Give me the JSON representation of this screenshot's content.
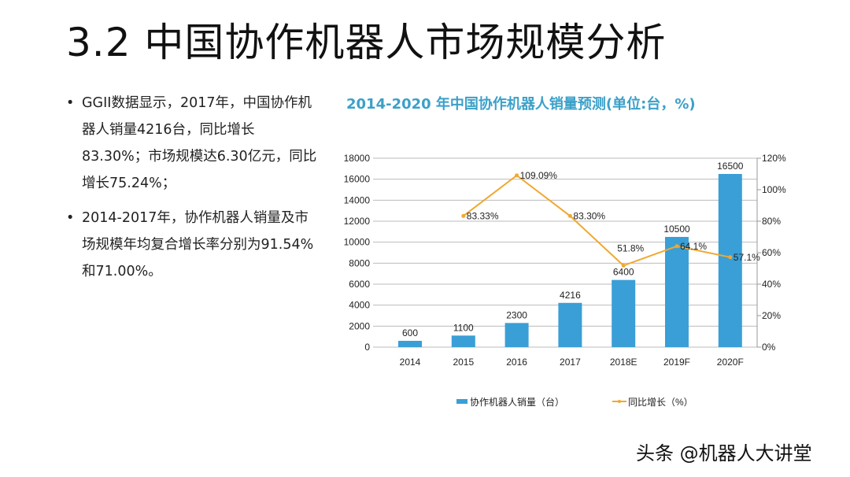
{
  "slide": {
    "title": "3.2 中国协作机器人市场规模分析",
    "bullets": [
      "GGII数据显示，2017年，中国协作机器人销量4216台，同比增长83.30%；市场规模达6.30亿元，同比增长75.24%；",
      "2014-2017年，协作机器人销量及市场规模年均复合增长率分别为91.54%和71.00%。"
    ],
    "watermark": "头条 @机器人大讲堂"
  },
  "chart_data": {
    "type": "bar",
    "title": "2014-2020 年中国协作机器人销量预测(单位:台，%)",
    "categories": [
      "2014",
      "2015",
      "2016",
      "2017",
      "2018E",
      "2019F",
      "2020F"
    ],
    "series": [
      {
        "name": "协作机器人销量（台）",
        "type": "bar",
        "axis": "left",
        "color": "#3a9fd6",
        "values": [
          600,
          1100,
          2300,
          4216,
          6400,
          10500,
          16500
        ],
        "labels": [
          "600",
          "1100",
          "2300",
          "4216",
          "6400",
          "10500",
          "16500"
        ]
      },
      {
        "name": "同比增长（%）",
        "type": "line",
        "axis": "right",
        "color": "#f0a830",
        "values": [
          null,
          83.33,
          109.09,
          83.3,
          51.8,
          64.1,
          57.1
        ],
        "labels": [
          "",
          "83.33%",
          "109.09%",
          "83.30%",
          "51.8%",
          "64.1%",
          "57.1%"
        ]
      }
    ],
    "left_axis": {
      "ylim": [
        0,
        18000
      ],
      "ticks": [
        "0",
        "2000",
        "4000",
        "6000",
        "8000",
        "10000",
        "12000",
        "14000",
        "16000",
        "18000"
      ]
    },
    "right_axis": {
      "ylim": [
        0,
        120
      ],
      "ticks": [
        "0%",
        "20%",
        "40%",
        "60%",
        "80%",
        "100%",
        "120%"
      ]
    },
    "grid": true,
    "legend": "bottom"
  }
}
